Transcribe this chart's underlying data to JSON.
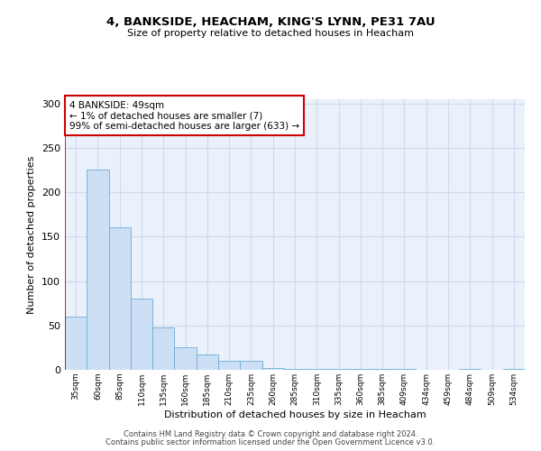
{
  "title": "4, BANKSIDE, HEACHAM, KING'S LYNN, PE31 7AU",
  "subtitle": "Size of property relative to detached houses in Heacham",
  "xlabel": "Distribution of detached houses by size in Heacham",
  "ylabel": "Number of detached properties",
  "bar_color": "#ccdff5",
  "bar_edge_color": "#6aaed6",
  "background_color": "#eaf1fb",
  "annotation_line1": "4 BANKSIDE: 49sqm",
  "annotation_line2": "← 1% of detached houses are smaller (7)",
  "annotation_line3": "99% of semi-detached houses are larger (633) →",
  "annotation_box_color": "white",
  "annotation_box_edge_color": "#cc0000",
  "marker_line_color": "#cc0000",
  "categories": [
    "35sqm",
    "60sqm",
    "85sqm",
    "110sqm",
    "135sqm",
    "160sqm",
    "185sqm",
    "210sqm",
    "235sqm",
    "260sqm",
    "285sqm",
    "310sqm",
    "335sqm",
    "360sqm",
    "385sqm",
    "409sqm",
    "434sqm",
    "459sqm",
    "484sqm",
    "509sqm",
    "534sqm"
  ],
  "values": [
    60,
    226,
    161,
    80,
    48,
    25,
    17,
    10,
    10,
    2,
    1,
    1,
    1,
    1,
    1,
    1,
    0,
    0,
    1,
    0,
    1
  ],
  "ylim": [
    0,
    305
  ],
  "yticks": [
    0,
    50,
    100,
    150,
    200,
    250,
    300
  ],
  "footer1": "Contains HM Land Registry data © Crown copyright and database right 2024.",
  "footer2": "Contains public sector information licensed under the Open Government Licence v3.0.",
  "grid_color": "#d0daea"
}
